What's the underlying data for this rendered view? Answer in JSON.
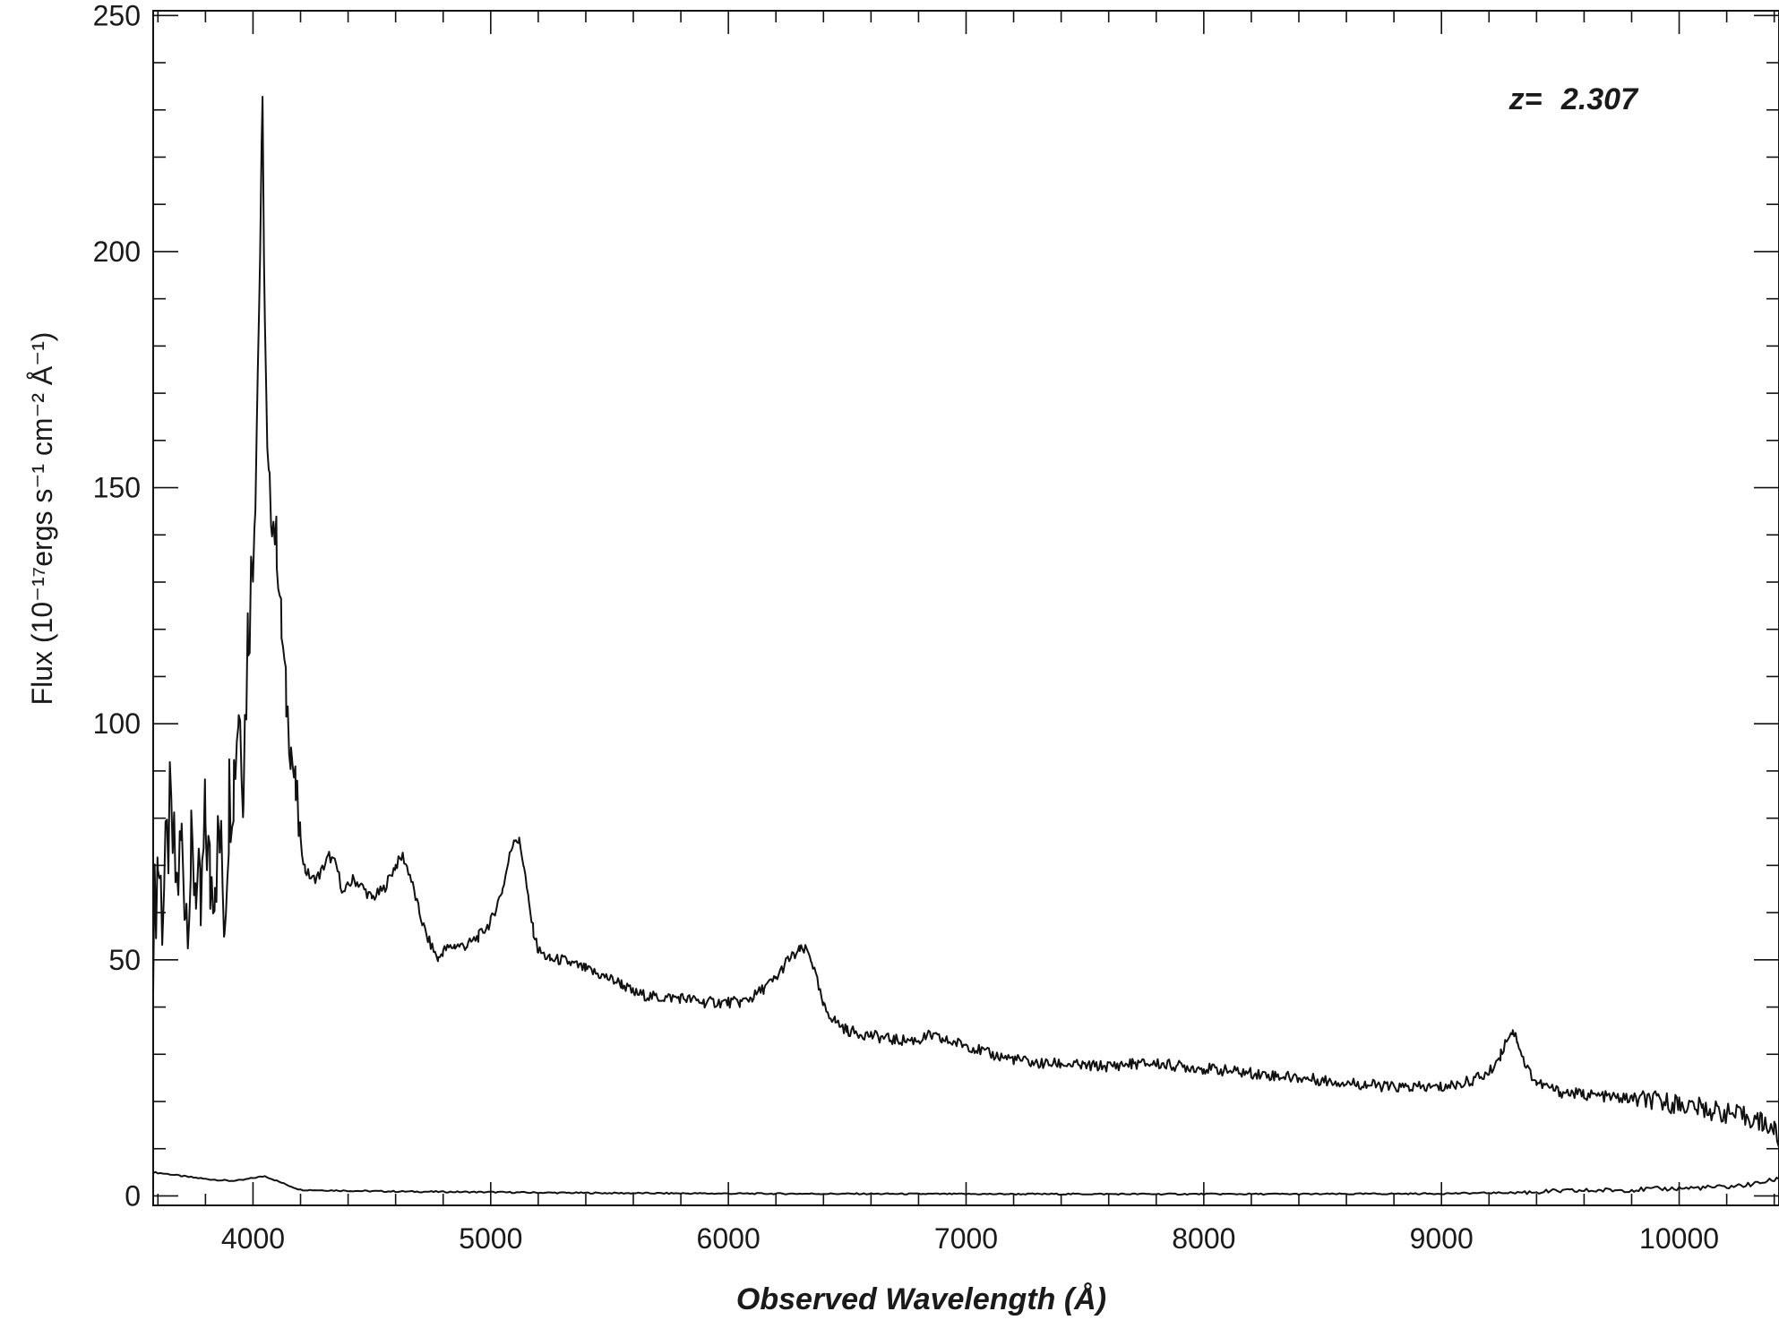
{
  "chart_data": {
    "type": "line",
    "title": "",
    "xlabel": "Observed Wavelength (Å)",
    "ylabel": "Flux (10⁻¹⁷ergs s⁻¹ cm⁻² Å⁻¹)",
    "xlim": [
      3580,
      10420
    ],
    "ylim": [
      -2,
      251
    ],
    "x_ticks": [
      4000,
      5000,
      6000,
      7000,
      8000,
      9000,
      10000
    ],
    "y_ticks": [
      0,
      50,
      100,
      150,
      200,
      250
    ],
    "x_minor_step": 200,
    "y_minor_step": 10,
    "grid": false,
    "annotation": {
      "label": "z=",
      "value": "2.307"
    },
    "line_color": "#111111",
    "series": [
      {
        "role": "flux",
        "x": [
          3580,
          3600,
          3620,
          3650,
          3680,
          3700,
          3720,
          3740,
          3760,
          3780,
          3800,
          3820,
          3840,
          3860,
          3880,
          3900,
          3920,
          3940,
          3960,
          3980,
          4000,
          4010,
          4020,
          4030,
          4040,
          4050,
          4060,
          4070,
          4080,
          4100,
          4120,
          4140,
          4160,
          4180,
          4200,
          4220,
          4250,
          4280,
          4320,
          4350,
          4380,
          4420,
          4450,
          4500,
          4550,
          4600,
          4630,
          4660,
          4700,
          4730,
          4760,
          4780,
          4800,
          4850,
          4900,
          4950,
          5000,
          5050,
          5080,
          5100,
          5120,
          5140,
          5160,
          5180,
          5200,
          5250,
          5300,
          5350,
          5400,
          5450,
          5500,
          5550,
          5600,
          5700,
          5800,
          5900,
          6000,
          6050,
          6100,
          6150,
          6200,
          6250,
          6280,
          6300,
          6330,
          6350,
          6380,
          6400,
          6450,
          6500,
          6600,
          6700,
          6800,
          6850,
          6900,
          7000,
          7100,
          7200,
          7300,
          7400,
          7500,
          7600,
          7700,
          7800,
          7900,
          8000,
          8100,
          8200,
          8300,
          8400,
          8500,
          8600,
          8700,
          8800,
          8900,
          9000,
          9100,
          9200,
          9250,
          9280,
          9300,
          9320,
          9350,
          9400,
          9500,
          9600,
          9700,
          9800,
          9900,
          10000,
          10100,
          10200,
          10300,
          10350,
          10400,
          10420
        ],
        "y": [
          55,
          72,
          60,
          80,
          65,
          75,
          62,
          70,
          68,
          58,
          80,
          66,
          70,
          75,
          60,
          85,
          90,
          105,
          90,
          122,
          135,
          150,
          175,
          200,
          229,
          185,
          155,
          148,
          145,
          138,
          120,
          105,
          95,
          85,
          75,
          69,
          67,
          68,
          72,
          70,
          64,
          67,
          66,
          63,
          65,
          70,
          72,
          68,
          60,
          55,
          52,
          50,
          52,
          53,
          53,
          55,
          58,
          65,
          72,
          76,
          75,
          70,
          62,
          56,
          52,
          50,
          50,
          49,
          48,
          47,
          46,
          45,
          43,
          42,
          42,
          41,
          41,
          41,
          42,
          44,
          46,
          50,
          51,
          52,
          52,
          50,
          44,
          40,
          37,
          35,
          34,
          33,
          33,
          34,
          33,
          32,
          30,
          29,
          28,
          28,
          27.5,
          27.5,
          28,
          28,
          27.5,
          27,
          26.5,
          26,
          25.5,
          25,
          24.5,
          24,
          23.5,
          23,
          23,
          23,
          24,
          26,
          30,
          34,
          35,
          33,
          28,
          24,
          22,
          21.5,
          21,
          20.5,
          20,
          19.5,
          18.5,
          17.5,
          16.5,
          15.5,
          14,
          12
        ]
      },
      {
        "role": "error",
        "x": [
          3580,
          3650,
          3700,
          3800,
          3900,
          3950,
          4000,
          4050,
          4100,
          4150,
          4200,
          4300,
          4500,
          4700,
          5000,
          5200,
          5500,
          6000,
          6500,
          7000,
          7500,
          8000,
          8500,
          9000,
          9300,
          9500,
          9800,
          10000,
          10200,
          10300,
          10420
        ],
        "y": [
          5,
          4.6,
          4.2,
          3.6,
          3.2,
          3.3,
          3.8,
          4.2,
          3.2,
          2.2,
          1.3,
          1.2,
          1.0,
          0.9,
          0.8,
          0.7,
          0.6,
          0.5,
          0.45,
          0.4,
          0.4,
          0.4,
          0.4,
          0.5,
          0.7,
          1.0,
          1.3,
          1.6,
          1.9,
          2.4,
          3.6
        ]
      }
    ]
  }
}
